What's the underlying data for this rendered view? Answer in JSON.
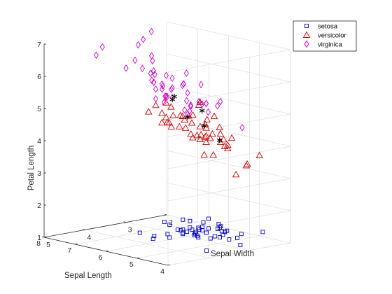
{
  "chart_data": {
    "type": "scatter",
    "projection": "3d",
    "title": "",
    "xlabel": "Sepal Width",
    "ylabel": "Sepal Length",
    "zlabel": "Petal Length",
    "xlim": [
      2,
      5
    ],
    "ylim": [
      4,
      8
    ],
    "zlim": [
      1,
      7
    ],
    "xticks": [
      "2",
      "3",
      "4",
      "5"
    ],
    "yticks": [
      "4",
      "5",
      "6",
      "7",
      "8"
    ],
    "zticks": [
      "1",
      "2",
      "3",
      "4",
      "5",
      "6",
      "7"
    ],
    "grid": true,
    "legend_position": "top-right",
    "series": [
      {
        "name": "setosa",
        "marker": "square",
        "color": "#0000cc",
        "points": [
          [
            3.5,
            5.1,
            1.4
          ],
          [
            3.0,
            4.9,
            1.4
          ],
          [
            3.2,
            4.7,
            1.3
          ],
          [
            3.1,
            4.6,
            1.5
          ],
          [
            3.6,
            5.0,
            1.4
          ],
          [
            3.9,
            5.4,
            1.7
          ],
          [
            3.4,
            4.6,
            1.4
          ],
          [
            3.4,
            5.0,
            1.5
          ],
          [
            2.9,
            4.4,
            1.4
          ],
          [
            3.1,
            4.9,
            1.5
          ],
          [
            3.7,
            5.4,
            1.5
          ],
          [
            3.4,
            4.8,
            1.6
          ],
          [
            3.0,
            4.8,
            1.4
          ],
          [
            3.0,
            4.3,
            1.1
          ],
          [
            4.0,
            5.8,
            1.2
          ],
          [
            4.4,
            5.7,
            1.5
          ],
          [
            3.9,
            5.4,
            1.3
          ],
          [
            3.5,
            5.1,
            1.4
          ],
          [
            3.8,
            5.7,
            1.7
          ],
          [
            3.8,
            5.1,
            1.5
          ],
          [
            3.4,
            5.4,
            1.7
          ],
          [
            3.7,
            5.1,
            1.5
          ],
          [
            3.6,
            4.6,
            1.0
          ],
          [
            3.3,
            5.1,
            1.7
          ],
          [
            3.4,
            4.8,
            1.9
          ],
          [
            3.0,
            5.0,
            1.6
          ],
          [
            3.4,
            5.0,
            1.6
          ],
          [
            3.5,
            5.2,
            1.5
          ],
          [
            3.4,
            5.2,
            1.4
          ],
          [
            3.2,
            4.7,
            1.6
          ],
          [
            3.1,
            4.8,
            1.6
          ],
          [
            3.4,
            5.4,
            1.5
          ],
          [
            4.1,
            5.2,
            1.5
          ],
          [
            4.2,
            5.5,
            1.4
          ],
          [
            3.1,
            4.9,
            1.5
          ],
          [
            3.2,
            5.0,
            1.2
          ],
          [
            3.5,
            5.5,
            1.3
          ],
          [
            3.6,
            4.9,
            1.4
          ],
          [
            3.0,
            4.4,
            1.3
          ],
          [
            3.4,
            5.1,
            1.5
          ],
          [
            3.5,
            5.0,
            1.3
          ],
          [
            2.3,
            4.5,
            1.3
          ],
          [
            3.2,
            4.4,
            1.3
          ],
          [
            3.5,
            5.0,
            1.6
          ],
          [
            3.8,
            5.1,
            1.9
          ],
          [
            3.0,
            4.8,
            1.4
          ],
          [
            3.8,
            5.1,
            1.6
          ],
          [
            3.2,
            4.6,
            1.4
          ],
          [
            3.7,
            5.3,
            1.5
          ],
          [
            3.3,
            5.0,
            1.4
          ]
        ]
      },
      {
        "name": "versicolor",
        "marker": "triangle",
        "color": "#cc0000",
        "points": [
          [
            3.2,
            7.0,
            4.7
          ],
          [
            3.2,
            6.4,
            4.5
          ],
          [
            3.1,
            6.9,
            4.9
          ],
          [
            2.3,
            5.5,
            4.0
          ],
          [
            2.8,
            6.5,
            4.6
          ],
          [
            2.8,
            5.7,
            4.5
          ],
          [
            3.3,
            6.3,
            4.7
          ],
          [
            2.4,
            4.9,
            3.3
          ],
          [
            2.9,
            6.6,
            4.6
          ],
          [
            2.7,
            5.2,
            3.9
          ],
          [
            2.0,
            5.0,
            3.5
          ],
          [
            3.0,
            5.9,
            4.2
          ],
          [
            2.2,
            6.0,
            4.0
          ],
          [
            2.9,
            6.1,
            4.7
          ],
          [
            2.9,
            5.6,
            3.6
          ],
          [
            3.1,
            6.7,
            4.4
          ],
          [
            3.0,
            5.6,
            4.5
          ],
          [
            2.7,
            5.8,
            4.1
          ],
          [
            2.2,
            6.2,
            4.5
          ],
          [
            2.5,
            5.6,
            3.9
          ],
          [
            3.2,
            5.9,
            4.8
          ],
          [
            2.8,
            6.1,
            4.0
          ],
          [
            2.5,
            6.3,
            4.9
          ],
          [
            2.8,
            6.1,
            4.7
          ],
          [
            2.9,
            6.4,
            4.3
          ],
          [
            3.0,
            6.6,
            4.4
          ],
          [
            2.8,
            6.8,
            4.8
          ],
          [
            3.0,
            6.7,
            5.0
          ],
          [
            2.9,
            6.0,
            4.5
          ],
          [
            2.6,
            5.7,
            3.5
          ],
          [
            2.4,
            5.5,
            3.8
          ],
          [
            2.4,
            5.5,
            3.7
          ],
          [
            2.7,
            5.8,
            3.9
          ],
          [
            2.7,
            6.0,
            5.1
          ],
          [
            3.0,
            5.4,
            4.5
          ],
          [
            3.4,
            6.0,
            4.5
          ],
          [
            3.1,
            6.7,
            4.7
          ],
          [
            2.3,
            6.3,
            4.4
          ],
          [
            3.0,
            5.6,
            4.1
          ],
          [
            2.5,
            5.5,
            4.0
          ],
          [
            2.6,
            5.5,
            4.4
          ],
          [
            3.0,
            6.1,
            4.6
          ],
          [
            2.6,
            5.8,
            4.0
          ],
          [
            2.3,
            5.0,
            3.3
          ],
          [
            2.7,
            5.6,
            4.2
          ],
          [
            3.0,
            5.7,
            4.2
          ],
          [
            2.9,
            5.7,
            4.2
          ],
          [
            2.9,
            6.2,
            4.3
          ],
          [
            2.5,
            5.1,
            3.0
          ],
          [
            2.8,
            5.7,
            4.1
          ]
        ]
      },
      {
        "name": "virginica",
        "marker": "diamond",
        "color": "#cc00cc",
        "points": [
          [
            3.3,
            6.3,
            6.0
          ],
          [
            2.7,
            5.8,
            5.1
          ],
          [
            3.0,
            7.1,
            5.9
          ],
          [
            2.9,
            6.3,
            5.6
          ],
          [
            3.0,
            6.5,
            5.8
          ],
          [
            3.0,
            7.6,
            6.6
          ],
          [
            2.5,
            4.9,
            4.5
          ],
          [
            2.9,
            7.3,
            6.3
          ],
          [
            2.5,
            6.7,
            5.8
          ],
          [
            3.6,
            7.2,
            6.1
          ],
          [
            3.2,
            6.5,
            5.1
          ],
          [
            2.7,
            6.4,
            5.3
          ],
          [
            3.0,
            6.8,
            5.5
          ],
          [
            2.5,
            5.7,
            5.0
          ],
          [
            2.8,
            5.8,
            5.1
          ],
          [
            3.2,
            6.4,
            5.3
          ],
          [
            3.0,
            6.5,
            5.5
          ],
          [
            3.8,
            7.7,
            6.7
          ],
          [
            2.6,
            7.7,
            6.9
          ],
          [
            2.2,
            6.0,
            5.0
          ],
          [
            3.2,
            6.9,
            5.7
          ],
          [
            2.8,
            5.6,
            4.9
          ],
          [
            2.8,
            7.7,
            6.7
          ],
          [
            2.7,
            6.3,
            4.9
          ],
          [
            3.3,
            6.7,
            5.7
          ],
          [
            3.2,
            7.2,
            6.0
          ],
          [
            2.8,
            6.2,
            4.8
          ],
          [
            3.0,
            6.1,
            4.9
          ],
          [
            2.8,
            6.4,
            5.6
          ],
          [
            3.0,
            7.2,
            5.8
          ],
          [
            2.8,
            7.4,
            6.1
          ],
          [
            3.8,
            7.9,
            6.4
          ],
          [
            2.8,
            6.4,
            5.6
          ],
          [
            2.8,
            6.3,
            5.1
          ],
          [
            2.6,
            6.1,
            5.6
          ],
          [
            3.0,
            7.7,
            6.1
          ],
          [
            3.4,
            6.3,
            5.6
          ],
          [
            3.1,
            6.4,
            5.5
          ],
          [
            3.0,
            6.0,
            4.8
          ],
          [
            3.1,
            6.9,
            5.4
          ],
          [
            3.1,
            6.7,
            5.6
          ],
          [
            3.1,
            6.9,
            5.1
          ],
          [
            2.7,
            5.8,
            5.1
          ],
          [
            3.2,
            6.8,
            5.9
          ],
          [
            3.3,
            6.7,
            5.7
          ],
          [
            3.0,
            6.7,
            5.2
          ],
          [
            2.5,
            6.3,
            5.0
          ],
          [
            3.0,
            6.5,
            5.2
          ],
          [
            3.4,
            6.2,
            5.4
          ],
          [
            3.0,
            5.9,
            5.1
          ]
        ]
      },
      {
        "name": "",
        "marker": "asterisk",
        "color": "#000000",
        "points": [
          [
            3.1,
            6.3,
            5.3
          ],
          [
            2.9,
            5.6,
            4.5
          ],
          [
            3.3,
            6.1,
            5.3
          ],
          [
            2.8,
            5.8,
            4.9
          ],
          [
            3.0,
            6.0,
            4.7
          ],
          [
            2.6,
            5.5,
            4.0
          ]
        ]
      }
    ]
  }
}
